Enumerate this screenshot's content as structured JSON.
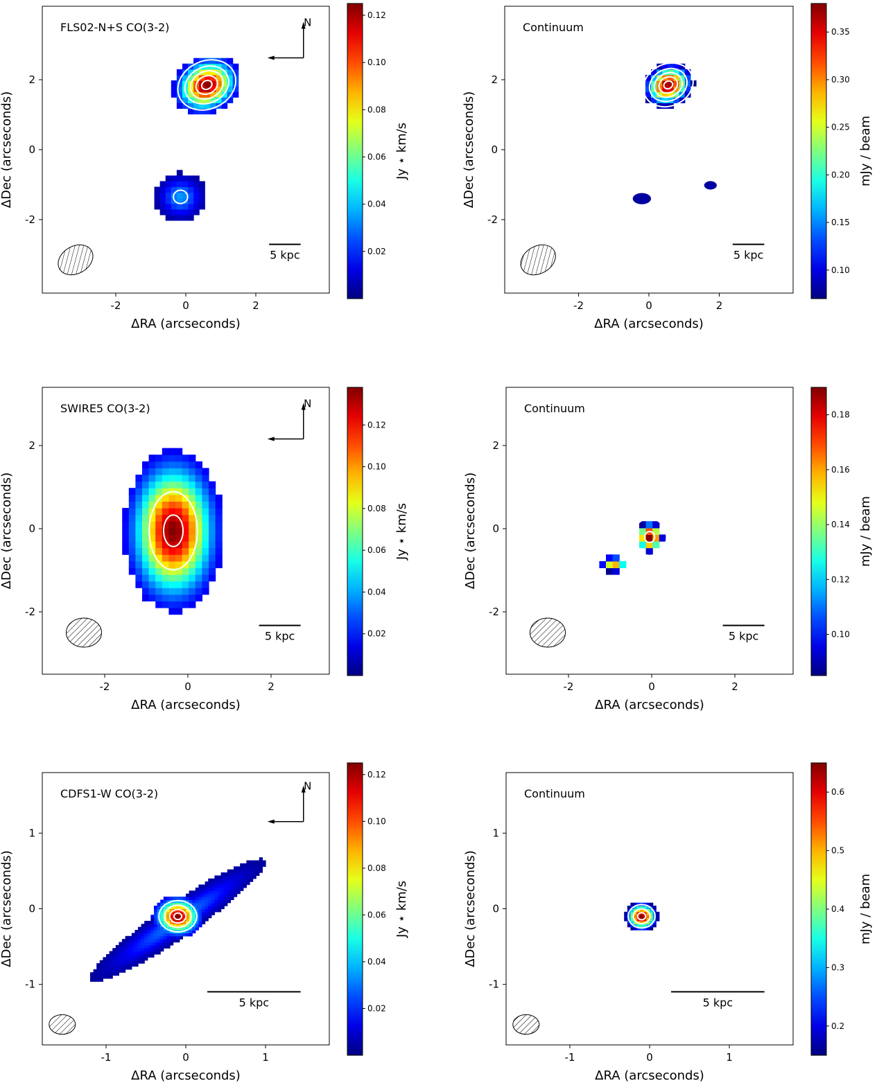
{
  "chart_data": [
    {
      "type": "heatmap",
      "title": "FLS02-N+S CO(3-2)",
      "xlabel": "ΔRA (arcseconds)",
      "ylabel": "ΔDec (arcseconds)",
      "xlim": [
        -4.1,
        4.1
      ],
      "ylim": [
        -4.1,
        4.1
      ],
      "xticks": [
        -2,
        0,
        2
      ],
      "yticks": [
        -2,
        0,
        2
      ],
      "colorbar": {
        "label": "Jy ⋆ km/s",
        "range": [
          0.0,
          0.125
        ],
        "ticks": [
          "0.02",
          "0.04",
          "0.06",
          "0.08",
          "0.10",
          "0.12"
        ]
      },
      "compass": "N",
      "scalebar": {
        "label": "5 kpc",
        "length_arcsec": 0.9
      },
      "beam": {
        "x": -3.15,
        "y": -3.15,
        "major": 1.05,
        "minor": 0.78,
        "angle_deg": 30
      },
      "sources": [
        {
          "x": 0.6,
          "y": 1.85,
          "rx": 1.0,
          "ry": 0.8,
          "angle_deg": 25,
          "peak": 0.125,
          "contours": [
            0.2,
            0.4,
            0.6,
            0.8,
            0.95
          ]
        },
        {
          "x": -0.15,
          "y": -1.35,
          "rx": 0.75,
          "ry": 0.7,
          "angle_deg": 0,
          "peak": 0.035,
          "contours": [
            0.85
          ]
        }
      ],
      "islands": []
    },
    {
      "type": "heatmap",
      "title": "Continuum",
      "xlabel": "ΔRA (arcseconds)",
      "ylabel": "ΔDec (arcseconds)",
      "xlim": [
        -4.1,
        4.1
      ],
      "ylim": [
        -4.1,
        4.1
      ],
      "xticks": [
        -2,
        0,
        2
      ],
      "yticks": [
        -2,
        0,
        2
      ],
      "colorbar": {
        "label": "mJy / beam",
        "range": [
          0.07,
          0.38
        ],
        "ticks": [
          "0.10",
          "0.15",
          "0.20",
          "0.25",
          "0.30",
          "0.35"
        ]
      },
      "scalebar": {
        "label": "5 kpc",
        "length_arcsec": 0.9
      },
      "beam": {
        "x": -3.15,
        "y": -3.15,
        "major": 1.05,
        "minor": 0.78,
        "angle_deg": 30
      },
      "sources": [
        {
          "x": 0.55,
          "y": 1.85,
          "rx": 0.85,
          "ry": 0.7,
          "angle_deg": 25,
          "peak": 0.38,
          "contours": [
            0.2,
            0.4,
            0.6,
            0.8,
            0.95
          ]
        }
      ],
      "islands": [
        {
          "x": -0.2,
          "y": -1.4,
          "rx": 0.28,
          "ry": 0.18,
          "value": 0.08
        },
        {
          "x": 1.75,
          "y": -1.02,
          "rx": 0.2,
          "ry": 0.14,
          "value": 0.08
        }
      ]
    },
    {
      "type": "heatmap",
      "title": "SWIRE5 CO(3-2)",
      "xlabel": "ΔRA (arcseconds)",
      "ylabel": "ΔDec (arcseconds)",
      "xlim": [
        -3.5,
        3.4
      ],
      "ylim": [
        -3.5,
        3.4
      ],
      "xticks": [
        -2,
        0,
        2
      ],
      "yticks": [
        -2,
        0,
        2
      ],
      "colorbar": {
        "label": "Jy ⋆ km/s",
        "range": [
          0.0,
          0.138
        ],
        "ticks": [
          "0.02",
          "0.04",
          "0.06",
          "0.08",
          "0.10",
          "0.12"
        ]
      },
      "compass": "N",
      "scalebar": {
        "label": "5 kpc",
        "length_arcsec": 1.0
      },
      "beam": {
        "x": -2.5,
        "y": -2.5,
        "major": 0.85,
        "minor": 0.7,
        "angle_deg": 0
      },
      "sources": [
        {
          "x": -0.35,
          "y": -0.05,
          "rx": 1.2,
          "ry": 1.95,
          "angle_deg": 0,
          "peak": 0.138,
          "contours": [
            0.6,
            0.92
          ]
        }
      ],
      "islands": []
    },
    {
      "type": "heatmap",
      "title": "Continuum",
      "xlabel": "ΔRA (arcseconds)",
      "ylabel": "ΔDec (arcseconds)",
      "xlim": [
        -3.5,
        3.4
      ],
      "ylim": [
        -3.5,
        3.4
      ],
      "xticks": [
        -2,
        0,
        2
      ],
      "yticks": [
        -2,
        0,
        2
      ],
      "colorbar": {
        "label": "mJy / beam",
        "range": [
          0.085,
          0.19
        ],
        "ticks": [
          "0.10",
          "0.12",
          "0.14",
          "0.16",
          "0.18"
        ]
      },
      "scalebar": {
        "label": "5 kpc",
        "length_arcsec": 1.0
      },
      "beam": {
        "x": -2.5,
        "y": -2.5,
        "major": 0.85,
        "minor": 0.7,
        "angle_deg": 0
      },
      "sources": [
        {
          "x": -0.05,
          "y": -0.2,
          "rx": 0.55,
          "ry": 0.6,
          "angle_deg": 0,
          "peak": 0.19,
          "contours": [
            0.3,
            0.9
          ]
        },
        {
          "x": -0.9,
          "y": -0.85,
          "rx": 0.6,
          "ry": 0.35,
          "angle_deg": 0,
          "peak": 0.16,
          "contours": []
        }
      ],
      "islands": []
    },
    {
      "type": "heatmap",
      "title": "CDFS1-W CO(3-2)",
      "xlabel": "ΔRA (arcseconds)",
      "ylabel": "ΔDec (arcseconds)",
      "xlim": [
        -1.8,
        1.8
      ],
      "ylim": [
        -1.8,
        1.8
      ],
      "xticks": [
        -1,
        0,
        1
      ],
      "yticks": [
        -1,
        0,
        1
      ],
      "colorbar": {
        "label": "Jy ⋆ km/s",
        "range": [
          0.0,
          0.125
        ],
        "ticks": [
          "0.02",
          "0.04",
          "0.06",
          "0.08",
          "0.10",
          "0.12"
        ]
      },
      "compass": "N",
      "scalebar": {
        "label": "5 kpc",
        "length_arcsec": 1.17
      },
      "beam": {
        "x": -1.55,
        "y": -1.53,
        "major": 0.33,
        "minor": 0.26,
        "angle_deg": 0
      },
      "sources": [
        {
          "x": -0.1,
          "y": -0.15,
          "rx": 1.35,
          "ry": 0.22,
          "angle_deg": 36,
          "peak": 0.03,
          "contours": []
        },
        {
          "x": -0.1,
          "y": -0.1,
          "rx": 0.32,
          "ry": 0.28,
          "angle_deg": 0,
          "peak": 0.125,
          "contours": [
            0.3,
            0.55,
            0.8,
            0.95
          ]
        }
      ],
      "islands": []
    },
    {
      "type": "heatmap",
      "title": "Continuum",
      "xlabel": "ΔRA (arcseconds)",
      "ylabel": "ΔDec (arcseconds)",
      "xlim": [
        -1.8,
        1.8
      ],
      "ylim": [
        -1.8,
        1.8
      ],
      "xticks": [
        -1,
        0,
        1
      ],
      "yticks": [
        -1,
        0,
        1
      ],
      "colorbar": {
        "label": "mJy / beam",
        "range": [
          0.15,
          0.65
        ],
        "ticks": [
          "0.2",
          "0.3",
          "0.4",
          "0.5",
          "0.6"
        ]
      },
      "scalebar": {
        "label": "5 kpc",
        "length_arcsec": 1.17
      },
      "beam": {
        "x": -1.55,
        "y": -1.53,
        "major": 0.33,
        "minor": 0.26,
        "angle_deg": 0
      },
      "sources": [
        {
          "x": -0.1,
          "y": -0.1,
          "rx": 0.26,
          "ry": 0.24,
          "angle_deg": 0,
          "peak": 0.65,
          "contours": [
            0.4,
            0.7,
            0.92
          ]
        }
      ],
      "islands": []
    }
  ]
}
